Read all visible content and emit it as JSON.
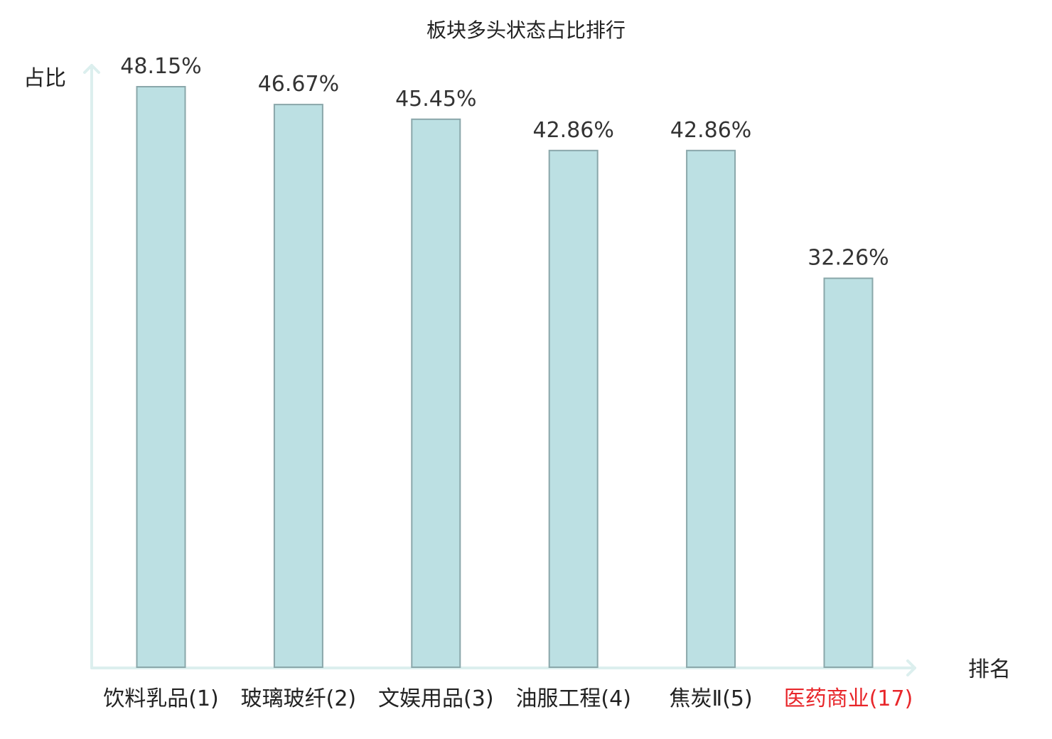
{
  "chart_data": {
    "type": "bar",
    "title": "板块多头状态占比排行",
    "ylabel": "占比",
    "xlabel": "排名",
    "ylim": [
      0,
      50
    ],
    "grid": false,
    "categories": [
      "饮料乳品(1)",
      "玻璃玻纤(2)",
      "文娱用品(3)",
      "油服工程(4)",
      "焦炭Ⅱ(5)",
      "医药商业(17)"
    ],
    "values": [
      48.15,
      46.67,
      45.45,
      42.86,
      42.86,
      32.26
    ],
    "value_labels": [
      "48.15%",
      "46.67%",
      "45.45%",
      "42.86%",
      "42.86%",
      "32.26%"
    ],
    "highlight_index": 5,
    "colors": {
      "bar_fill": "#bce0e3",
      "bar_stroke": "#8aa7aa",
      "axis": "#dcefee",
      "text": "#222222",
      "highlight": "#e8262a"
    }
  }
}
